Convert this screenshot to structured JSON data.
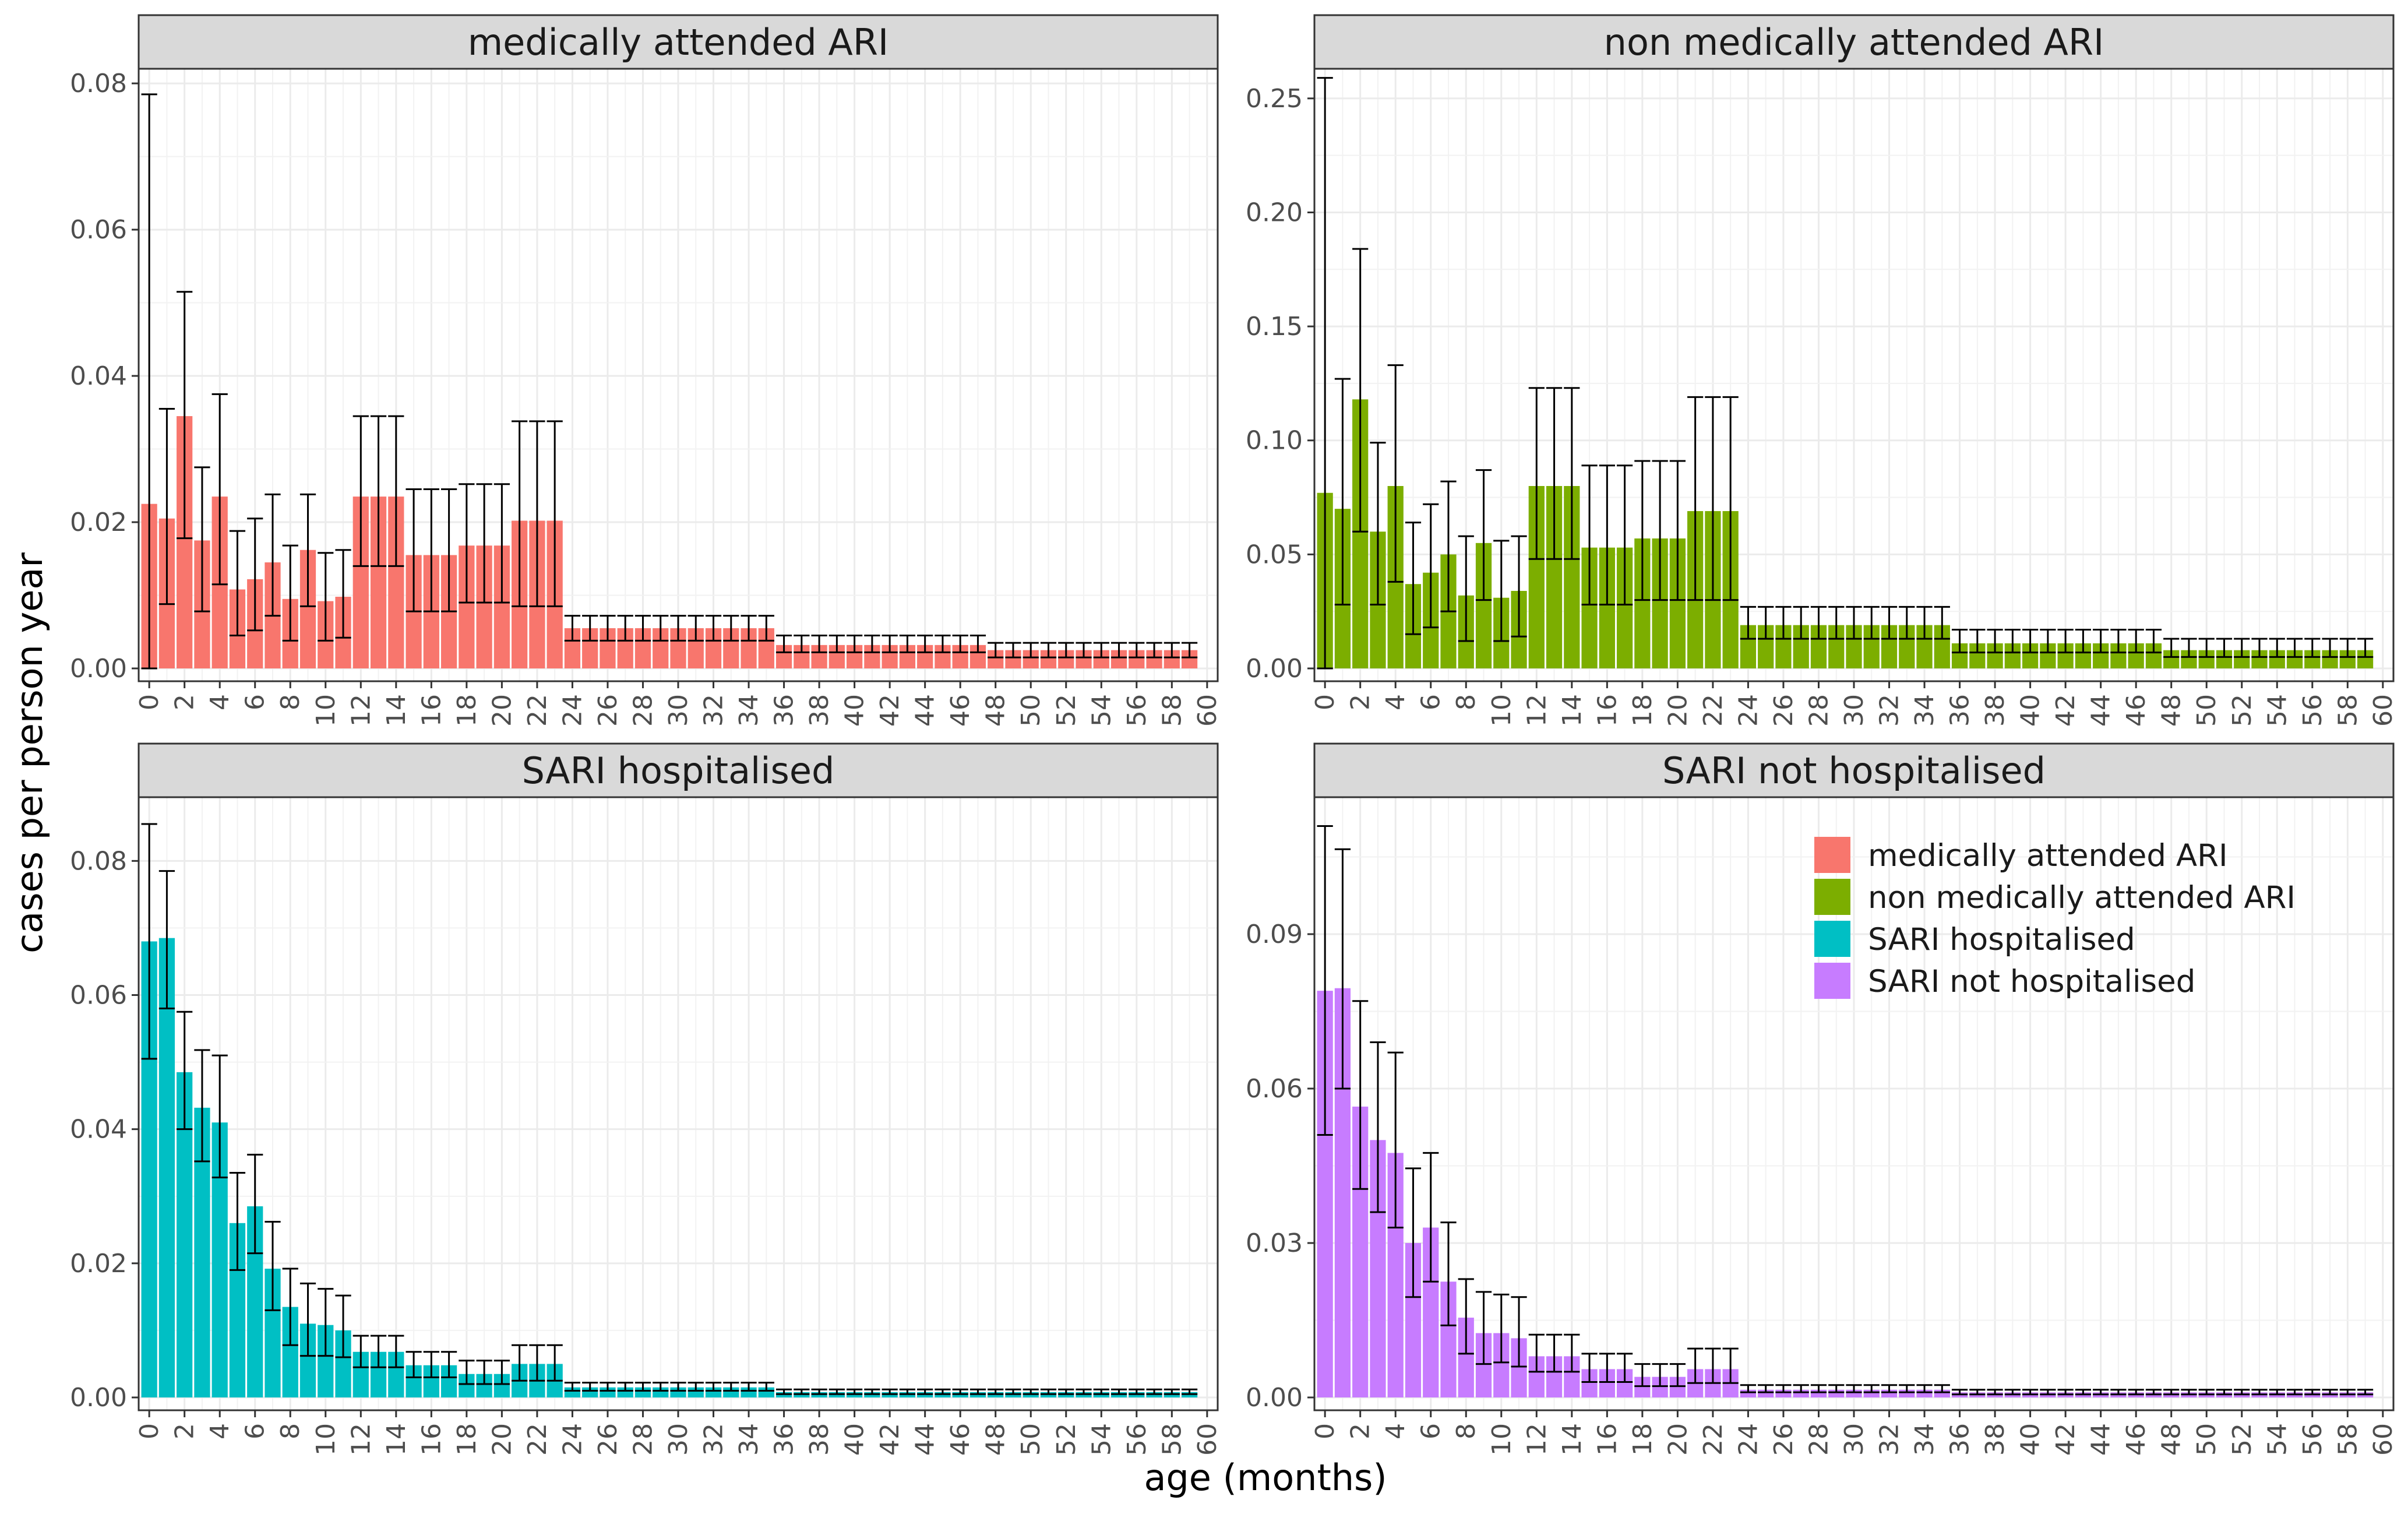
{
  "chart_data": {
    "type": "bar",
    "xlabel": "age (months)",
    "ylabel": "cases per person year",
    "x_ticks": [
      "0",
      "2",
      "4",
      "6",
      "8",
      "10",
      "12",
      "14",
      "16",
      "18",
      "20",
      "22",
      "24",
      "26",
      "28",
      "30",
      "32",
      "34",
      "36",
      "38",
      "40",
      "42",
      "44",
      "46",
      "48",
      "50",
      "52",
      "54",
      "56",
      "58",
      "60"
    ],
    "x_range": [
      0,
      60
    ],
    "grid": true,
    "legend_position": "inside the bottom-right panel, upper right",
    "legend": [
      {
        "label": "medically attended ARI",
        "color": "#F8766D"
      },
      {
        "label": "non medically attended ARI",
        "color": "#7CAE00"
      },
      {
        "label": "SARI hospitalised",
        "color": "#00BFC4"
      },
      {
        "label": "SARI not hospitalised",
        "color": "#C77CFF"
      }
    ],
    "panels": [
      {
        "title": "medically attended ARI",
        "color": "#F8766D",
        "ylim": [
          0,
          0.082
        ],
        "y_ticks": [
          "0.00",
          "0.02",
          "0.04",
          "0.06",
          "0.08"
        ],
        "y_tick_values": [
          0,
          0.02,
          0.04,
          0.06,
          0.08
        ],
        "head": [
          {
            "v": 0.0225,
            "lo": 0.0,
            "hi": 0.0785
          },
          {
            "v": 0.0205,
            "lo": 0.0088,
            "hi": 0.0355
          },
          {
            "v": 0.0345,
            "lo": 0.0178,
            "hi": 0.0515
          },
          {
            "v": 0.0175,
            "lo": 0.0078,
            "hi": 0.0275
          },
          {
            "v": 0.0235,
            "lo": 0.0115,
            "hi": 0.0375
          },
          {
            "v": 0.0108,
            "lo": 0.0045,
            "hi": 0.0188
          },
          {
            "v": 0.0122,
            "lo": 0.0052,
            "hi": 0.0205
          },
          {
            "v": 0.0145,
            "lo": 0.0072,
            "hi": 0.0238
          },
          {
            "v": 0.0095,
            "lo": 0.0038,
            "hi": 0.0168
          },
          {
            "v": 0.0162,
            "lo": 0.0085,
            "hi": 0.0238
          },
          {
            "v": 0.0092,
            "lo": 0.0038,
            "hi": 0.0158
          },
          {
            "v": 0.0098,
            "lo": 0.0042,
            "hi": 0.0162
          }
        ],
        "groups": [
          {
            "from": 12,
            "to": 15,
            "v": 0.0235,
            "lo": 0.014,
            "hi": 0.0345
          },
          {
            "from": 15,
            "to": 18,
            "v": 0.0155,
            "lo": 0.0078,
            "hi": 0.0245
          },
          {
            "from": 18,
            "to": 21,
            "v": 0.0168,
            "lo": 0.009,
            "hi": 0.0252
          },
          {
            "from": 21,
            "to": 24,
            "v": 0.0202,
            "lo": 0.0085,
            "hi": 0.0338
          },
          {
            "from": 24,
            "to": 36,
            "v": 0.0055,
            "lo": 0.0038,
            "hi": 0.0072
          },
          {
            "from": 36,
            "to": 48,
            "v": 0.0032,
            "lo": 0.0022,
            "hi": 0.0045
          },
          {
            "from": 48,
            "to": 60,
            "v": 0.0025,
            "lo": 0.0015,
            "hi": 0.0035
          }
        ]
      },
      {
        "title": "non medically attended ARI",
        "color": "#7CAE00",
        "ylim": [
          0,
          0.263
        ],
        "y_ticks": [
          "0.00",
          "0.05",
          "0.10",
          "0.15",
          "0.20",
          "0.25"
        ],
        "y_tick_values": [
          0,
          0.05,
          0.1,
          0.15,
          0.2,
          0.25
        ],
        "head": [
          {
            "v": 0.077,
            "lo": 0.0,
            "hi": 0.259
          },
          {
            "v": 0.07,
            "lo": 0.028,
            "hi": 0.127
          },
          {
            "v": 0.118,
            "lo": 0.06,
            "hi": 0.184
          },
          {
            "v": 0.06,
            "lo": 0.028,
            "hi": 0.099
          },
          {
            "v": 0.08,
            "lo": 0.038,
            "hi": 0.133
          },
          {
            "v": 0.037,
            "lo": 0.015,
            "hi": 0.064
          },
          {
            "v": 0.042,
            "lo": 0.018,
            "hi": 0.072
          },
          {
            "v": 0.05,
            "lo": 0.025,
            "hi": 0.082
          },
          {
            "v": 0.032,
            "lo": 0.012,
            "hi": 0.058
          },
          {
            "v": 0.055,
            "lo": 0.03,
            "hi": 0.087
          },
          {
            "v": 0.031,
            "lo": 0.012,
            "hi": 0.056
          },
          {
            "v": 0.034,
            "lo": 0.014,
            "hi": 0.058
          }
        ],
        "groups": [
          {
            "from": 12,
            "to": 15,
            "v": 0.08,
            "lo": 0.048,
            "hi": 0.123
          },
          {
            "from": 15,
            "to": 18,
            "v": 0.053,
            "lo": 0.028,
            "hi": 0.089
          },
          {
            "from": 18,
            "to": 21,
            "v": 0.057,
            "lo": 0.03,
            "hi": 0.091
          },
          {
            "from": 21,
            "to": 24,
            "v": 0.069,
            "lo": 0.03,
            "hi": 0.119
          },
          {
            "from": 24,
            "to": 36,
            "v": 0.019,
            "lo": 0.013,
            "hi": 0.027
          },
          {
            "from": 36,
            "to": 48,
            "v": 0.011,
            "lo": 0.007,
            "hi": 0.017
          },
          {
            "from": 48,
            "to": 60,
            "v": 0.008,
            "lo": 0.005,
            "hi": 0.013
          }
        ]
      },
      {
        "title": "SARI hospitalised",
        "color": "#00BFC4",
        "ylim": [
          0,
          0.0895
        ],
        "y_ticks": [
          "0.00",
          "0.02",
          "0.04",
          "0.06",
          "0.08"
        ],
        "y_tick_values": [
          0,
          0.02,
          0.04,
          0.06,
          0.08
        ],
        "head": [
          {
            "v": 0.068,
            "lo": 0.0505,
            "hi": 0.0855
          },
          {
            "v": 0.0685,
            "lo": 0.058,
            "hi": 0.0785
          },
          {
            "v": 0.0485,
            "lo": 0.04,
            "hi": 0.0575
          },
          {
            "v": 0.0432,
            "lo": 0.0352,
            "hi": 0.0518
          },
          {
            "v": 0.041,
            "lo": 0.0328,
            "hi": 0.051
          },
          {
            "v": 0.026,
            "lo": 0.019,
            "hi": 0.0335
          },
          {
            "v": 0.0285,
            "lo": 0.0215,
            "hi": 0.0362
          },
          {
            "v": 0.0192,
            "lo": 0.013,
            "hi": 0.0262
          },
          {
            "v": 0.0135,
            "lo": 0.0078,
            "hi": 0.0192
          },
          {
            "v": 0.011,
            "lo": 0.0062,
            "hi": 0.017
          },
          {
            "v": 0.0108,
            "lo": 0.0062,
            "hi": 0.0162
          },
          {
            "v": 0.01,
            "lo": 0.006,
            "hi": 0.0152
          }
        ],
        "groups": [
          {
            "from": 12,
            "to": 15,
            "v": 0.0068,
            "lo": 0.0045,
            "hi": 0.0092
          },
          {
            "from": 15,
            "to": 18,
            "v": 0.0048,
            "lo": 0.003,
            "hi": 0.0068
          },
          {
            "from": 18,
            "to": 21,
            "v": 0.0035,
            "lo": 0.002,
            "hi": 0.0055
          },
          {
            "from": 21,
            "to": 24,
            "v": 0.005,
            "lo": 0.0025,
            "hi": 0.0078
          },
          {
            "from": 24,
            "to": 36,
            "v": 0.0015,
            "lo": 0.001,
            "hi": 0.0022
          },
          {
            "from": 36,
            "to": 48,
            "v": 0.0008,
            "lo": 0.0005,
            "hi": 0.0012
          },
          {
            "from": 48,
            "to": 60,
            "v": 0.0008,
            "lo": 0.0005,
            "hi": 0.0012
          }
        ]
      },
      {
        "title": "SARI not hospitalised",
        "color": "#C77CFF",
        "ylim": [
          0,
          0.1166
        ],
        "y_ticks": [
          "0.00",
          "0.03",
          "0.06",
          "0.09"
        ],
        "y_tick_values": [
          0,
          0.03,
          0.06,
          0.09
        ],
        "head": [
          {
            "v": 0.079,
            "lo": 0.051,
            "hi": 0.111
          },
          {
            "v": 0.0795,
            "lo": 0.06,
            "hi": 0.1065
          },
          {
            "v": 0.0565,
            "lo": 0.0405,
            "hi": 0.077
          },
          {
            "v": 0.05,
            "lo": 0.036,
            "hi": 0.069
          },
          {
            "v": 0.0475,
            "lo": 0.033,
            "hi": 0.067
          },
          {
            "v": 0.03,
            "lo": 0.0195,
            "hi": 0.0445
          },
          {
            "v": 0.033,
            "lo": 0.0225,
            "hi": 0.0475
          },
          {
            "v": 0.0225,
            "lo": 0.014,
            "hi": 0.034
          },
          {
            "v": 0.0155,
            "lo": 0.0085,
            "hi": 0.023
          },
          {
            "v": 0.0125,
            "lo": 0.0065,
            "hi": 0.0205
          },
          {
            "v": 0.0125,
            "lo": 0.0068,
            "hi": 0.02
          },
          {
            "v": 0.0115,
            "lo": 0.006,
            "hi": 0.0195
          }
        ],
        "groups": [
          {
            "from": 12,
            "to": 15,
            "v": 0.008,
            "lo": 0.005,
            "hi": 0.0122
          },
          {
            "from": 15,
            "to": 18,
            "v": 0.0055,
            "lo": 0.003,
            "hi": 0.0085
          },
          {
            "from": 18,
            "to": 21,
            "v": 0.004,
            "lo": 0.0022,
            "hi": 0.0065
          },
          {
            "from": 21,
            "to": 24,
            "v": 0.0055,
            "lo": 0.0028,
            "hi": 0.0095
          },
          {
            "from": 24,
            "to": 36,
            "v": 0.0015,
            "lo": 0.001,
            "hi": 0.0024
          },
          {
            "from": 36,
            "to": 48,
            "v": 0.001,
            "lo": 0.0006,
            "hi": 0.0015
          },
          {
            "from": 48,
            "to": 60,
            "v": 0.001,
            "lo": 0.0006,
            "hi": 0.0015
          }
        ]
      }
    ]
  }
}
